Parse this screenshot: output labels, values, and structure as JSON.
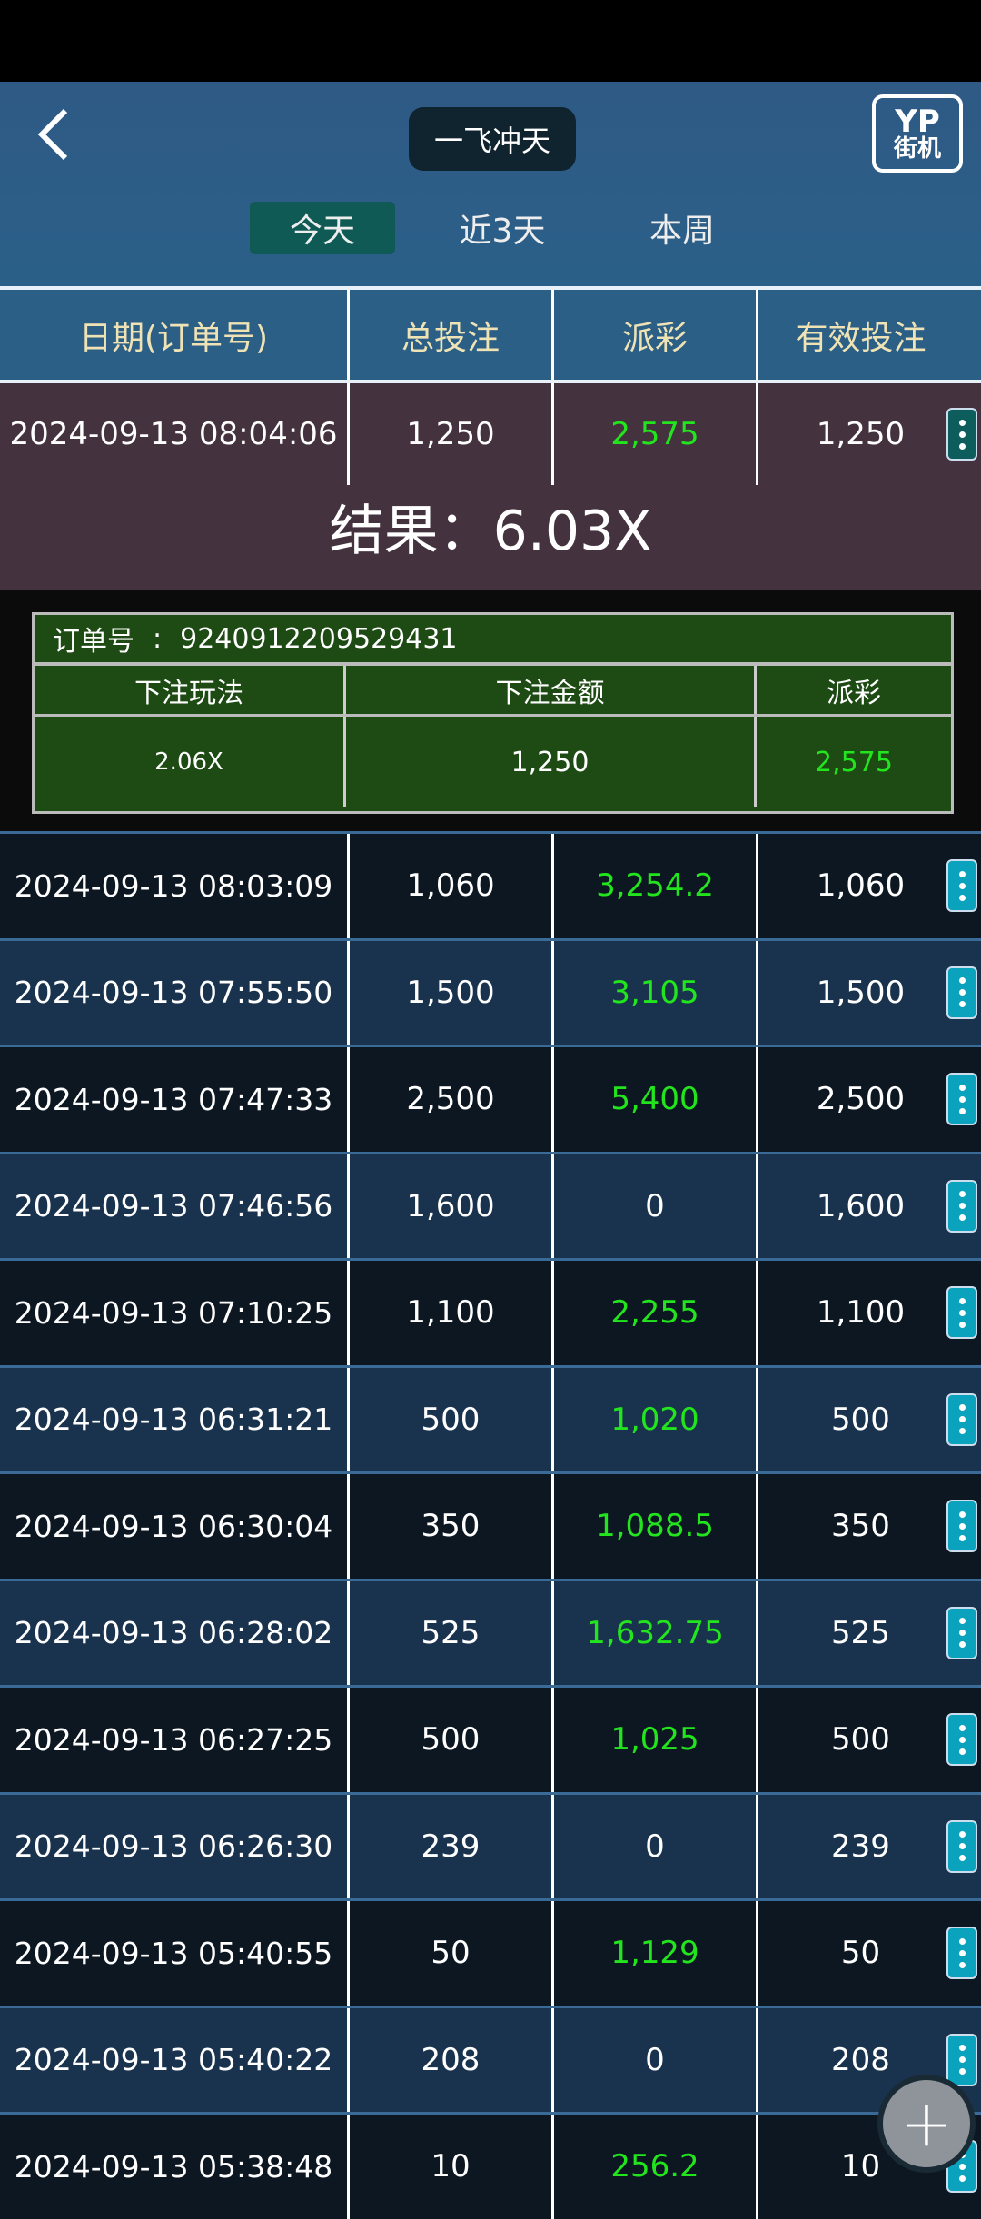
{
  "header": {
    "title": "一飞冲天",
    "logo_text_top": "YP",
    "logo_text_bottom": "街机"
  },
  "tabs": [
    {
      "label": "今天",
      "active": true
    },
    {
      "label": "近3天"
    },
    {
      "label": "本周"
    }
  ],
  "columns": [
    "日期(订单号)",
    "总投注",
    "派彩",
    "有效投注"
  ],
  "expanded": {
    "date": "2024-09-13 08:04:06",
    "bet": "1,250",
    "payout": "2,575",
    "valid": "1,250",
    "result": "结果：6.03X",
    "detail": {
      "order_label": "订单号",
      "order_sep": ":",
      "order_no": "9240912209529431",
      "headers": [
        "下注玩法",
        "下注金额",
        "派彩"
      ],
      "values": [
        "2.06X",
        "1,250",
        "2,575"
      ]
    }
  },
  "rows": [
    {
      "date": "2024-09-13 08:03:09",
      "bet": "1,060",
      "payout": "3,254.2",
      "valid": "1,060"
    },
    {
      "date": "2024-09-13 07:55:50",
      "bet": "1,500",
      "payout": "3,105",
      "valid": "1,500"
    },
    {
      "date": "2024-09-13 07:47:33",
      "bet": "2,500",
      "payout": "5,400",
      "valid": "2,500"
    },
    {
      "date": "2024-09-13 07:46:56",
      "bet": "1,600",
      "payout": "0",
      "valid": "1,600"
    },
    {
      "date": "2024-09-13 07:10:25",
      "bet": "1,100",
      "payout": "2,255",
      "valid": "1,100"
    },
    {
      "date": "2024-09-13 06:31:21",
      "bet": "500",
      "payout": "1,020",
      "valid": "500"
    },
    {
      "date": "2024-09-13 06:30:04",
      "bet": "350",
      "payout": "1,088.5",
      "valid": "350"
    },
    {
      "date": "2024-09-13 06:28:02",
      "bet": "525",
      "payout": "1,632.75",
      "valid": "525"
    },
    {
      "date": "2024-09-13 06:27:25",
      "bet": "500",
      "payout": "1,025",
      "valid": "500"
    },
    {
      "date": "2024-09-13 06:26:30",
      "bet": "239",
      "payout": "0",
      "valid": "239"
    },
    {
      "date": "2024-09-13 05:40:55",
      "bet": "50",
      "payout": "1,129",
      "valid": "50"
    },
    {
      "date": "2024-09-13 05:40:22",
      "bet": "208",
      "payout": "0",
      "valid": "208"
    },
    {
      "date": "2024-09-13 05:38:48",
      "bet": "10",
      "payout": "256.2",
      "valid": "10"
    }
  ],
  "colors": {
    "payout_positive": "#22e51e",
    "payout_zero": "#ffffff",
    "header_text": "#efe3b6",
    "kebab": "#0aa2bd"
  },
  "fab": {
    "icon": "plus-icon",
    "label": "+"
  }
}
